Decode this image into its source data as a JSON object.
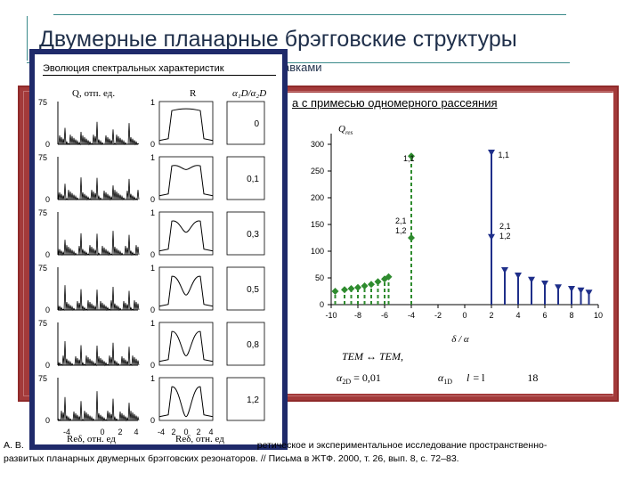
{
  "slide": {
    "title": "Двумерные планарные брэгговские структуры",
    "subtitle_tail": "авками",
    "plot_caption": "а с примесью одномерного рассеяния",
    "reference_line1": "А. В.",
    "reference_line1_tail": "ретическое и экспериментальное исследование пространственно-",
    "reference_line2": "развитых планарных двумерных брэгговских резонаторов. // Письма в ЖТФ. 2000, т. 26, вып. 8, с. 72–83."
  },
  "evolution_panel": {
    "label": "Эволюция спектральных характеристик",
    "col_q_header": "Q, отп. ед.",
    "col_r_header": "R",
    "col_ratio_header": "α₁D/α₂D",
    "q_tick_top": "75",
    "q_tick_bottom": "0",
    "r_tick_top": "1",
    "r_tick_bottom": "0",
    "ratios": [
      "0",
      "0,1",
      "0,3",
      "0,5",
      "0,8",
      "1,2"
    ],
    "x_ticks": [
      "-4",
      "0",
      "2",
      "4"
    ],
    "x_ticks_r": [
      "-4",
      "2",
      "0",
      "2",
      "4"
    ],
    "xlabel": "Reδ, отн. ед",
    "xlabel_r": "Reδ, отн. ед"
  },
  "chart_data": {
    "type": "scatter",
    "ylabel": "Q",
    "ylabel_sub": "res",
    "xlabel": "δ / α",
    "x_ticks": [
      -10,
      -8,
      -6,
      -4,
      -2,
      0,
      2,
      4,
      6,
      8,
      10
    ],
    "y_ticks": [
      0,
      50,
      100,
      150,
      200,
      250,
      300
    ],
    "xlim": [
      -10,
      10
    ],
    "ylim": [
      0,
      320
    ],
    "series": [
      {
        "color": "#2e8b2e",
        "style": "dashed-stem-diamond",
        "points": [
          [
            -9.7,
            25
          ],
          [
            -9.0,
            28
          ],
          [
            -8.5,
            30
          ],
          [
            -8.0,
            32
          ],
          [
            -7.5,
            35
          ],
          [
            -7.0,
            38
          ],
          [
            -6.5,
            43
          ],
          [
            -6.0,
            48
          ],
          [
            -5.7,
            52
          ],
          [
            -4.0,
            125
          ],
          [
            -4.0,
            278
          ]
        ]
      },
      {
        "color": "#1f2f8a",
        "style": "solid-stem-triangle",
        "points": [
          [
            2.0,
            285
          ],
          [
            2.0,
            127
          ],
          [
            3.0,
            65
          ],
          [
            4.0,
            55
          ],
          [
            5.0,
            47
          ],
          [
            6.0,
            40
          ],
          [
            7.0,
            33
          ],
          [
            8.0,
            30
          ],
          [
            8.7,
            27
          ],
          [
            9.3,
            23
          ]
        ]
      }
    ],
    "annotations": [
      {
        "text": "1,1",
        "x": -4.6,
        "y": 268
      },
      {
        "text": "2,1",
        "x": -5.2,
        "y": 152
      },
      {
        "text": "1,2",
        "x": -5.2,
        "y": 133
      },
      {
        "text": "1,1",
        "x": 2.5,
        "y": 275
      },
      {
        "text": "2,1",
        "x": 2.6,
        "y": 142
      },
      {
        "text": "1,2",
        "x": 2.6,
        "y": 123
      }
    ],
    "formula_line1": "TEM ↔ TEM,",
    "formula_line2_a": "α",
    "formula_line2_a_sub": "2D",
    "formula_line2_b": "= 0,01",
    "formula_line2_c": "α",
    "formula_line2_c_sub": "1D",
    "formula_line2_d": "l",
    "formula_line2_e": "= l",
    "formula_line2_f": "18"
  }
}
